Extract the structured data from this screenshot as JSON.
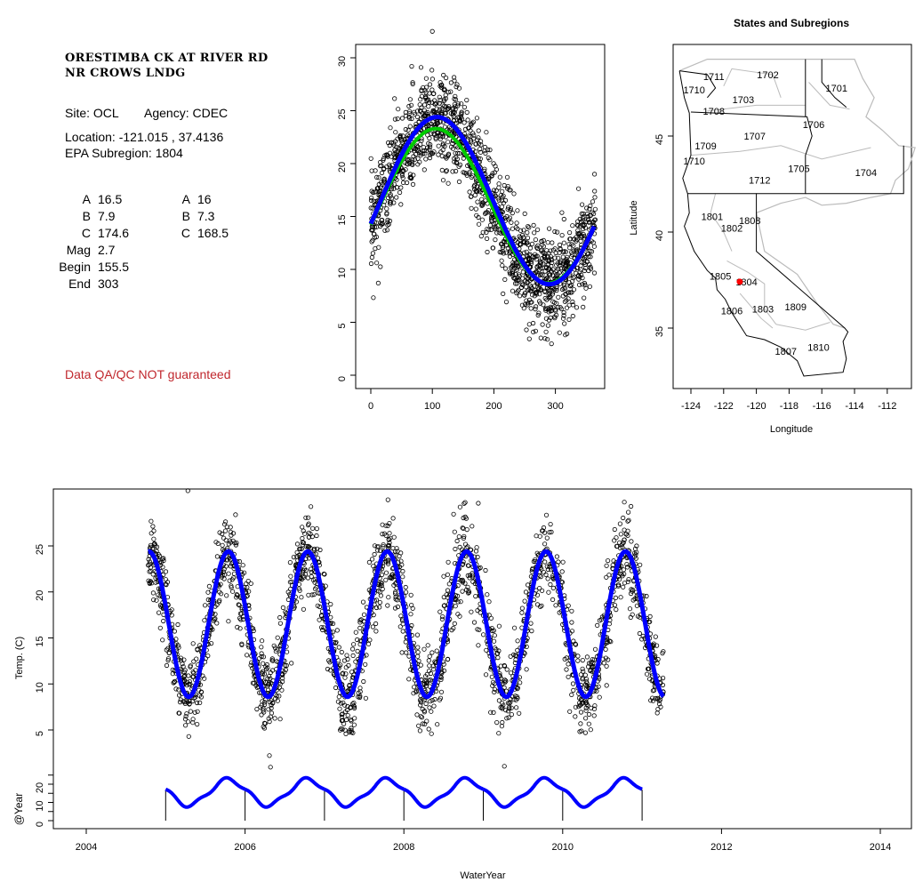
{
  "station": {
    "title_line1": "ORESTIMBA CK AT RIVER RD",
    "title_line2": "NR CROWS LNDG",
    "site": "Site: OCL",
    "agency": "Agency: CDEC",
    "location": "Location: -121.015 , 37.4136",
    "subregion": "EPA Subregion: 1804",
    "params_left": [
      {
        "k": "A",
        "v": "16.5"
      },
      {
        "k": "B",
        "v": "7.9"
      },
      {
        "k": "C",
        "v": "174.6"
      },
      {
        "k": "Mag",
        "v": "2.7"
      },
      {
        "k": "Begin",
        "v": "155.5"
      },
      {
        "k": "End",
        "v": "303"
      }
    ],
    "params_right": [
      {
        "k": "A",
        "v": "16"
      },
      {
        "k": "B",
        "v": "7.3"
      },
      {
        "k": "C",
        "v": "168.5"
      }
    ],
    "qa_note": "Data QA/QC NOT guaranteed"
  },
  "colors": {
    "fit": "#0000ff",
    "fit2": "#00cc00",
    "site": "#ff0000",
    "border": "#000000",
    "subregion": "#bbbbbb",
    "qa": "#c0272d"
  },
  "chart_data": [
    {
      "type": "scatter",
      "title": "",
      "xlabel": "",
      "ylabel": "",
      "xlim": [
        -5,
        370
      ],
      "ylim": [
        -1,
        31.5
      ],
      "xticks": [
        "0",
        "100",
        "200",
        "300"
      ],
      "yticks": [
        "0",
        "5",
        "10",
        "15",
        "20",
        "25",
        "30"
      ],
      "points_model": {
        "mean": 16.3,
        "amplitude": 7.6,
        "peak_day": 288,
        "noise_sd": 2.2,
        "n": 1500,
        "day_range": [
          0,
          365
        ]
      },
      "outlier": {
        "x": 100,
        "y": 32.5
      },
      "fits": [
        {
          "name": "fit-blue",
          "A": 16.5,
          "B": 7.9,
          "C": 174.6,
          "peak_day": 290,
          "color": "#0000ff"
        },
        {
          "name": "fit-green",
          "A": 16,
          "B": 7.3,
          "C": 168.5,
          "peak_day": 288,
          "color": "#00cc00"
        }
      ]
    },
    {
      "type": "map",
      "title": "States and Subregions",
      "xlabel": "Longitude",
      "ylabel": "Latitude",
      "xlim": [
        -125.2,
        -110.6
      ],
      "ylim": [
        31.9,
        49.8
      ],
      "xticks": [
        "-124",
        "-122",
        "-120",
        "-118",
        "-116",
        "-114",
        "-112"
      ],
      "yticks": [
        "35",
        "40",
        "45"
      ],
      "site": {
        "lon": -121.015,
        "lat": 37.4136
      },
      "subregions": [
        {
          "label": "1711",
          "lon": -122.6,
          "lat": 48.1
        },
        {
          "label": "1702",
          "lon": -119.3,
          "lat": 48.2
        },
        {
          "label": "1701",
          "lon": -115.1,
          "lat": 47.5
        },
        {
          "label": "1710",
          "lon": -123.8,
          "lat": 47.4
        },
        {
          "label": "1703",
          "lon": -120.8,
          "lat": 46.9
        },
        {
          "label": "1708",
          "lon": -122.6,
          "lat": 46.3
        },
        {
          "label": "1706",
          "lon": -116.5,
          "lat": 45.6
        },
        {
          "label": "1707",
          "lon": -120.1,
          "lat": 45.0
        },
        {
          "label": "1709",
          "lon": -123.1,
          "lat": 44.5
        },
        {
          "label": "1710",
          "lon": -123.8,
          "lat": 43.7
        },
        {
          "label": "1705",
          "lon": -117.4,
          "lat": 43.3
        },
        {
          "label": "1704",
          "lon": -113.3,
          "lat": 43.1
        },
        {
          "label": "1712",
          "lon": -119.8,
          "lat": 42.7
        },
        {
          "label": "1801",
          "lon": -122.7,
          "lat": 40.8
        },
        {
          "label": "1808",
          "lon": -120.4,
          "lat": 40.6
        },
        {
          "label": "1802",
          "lon": -121.5,
          "lat": 40.2
        },
        {
          "label": "1805",
          "lon": -122.2,
          "lat": 37.7
        },
        {
          "label": "1804",
          "lon": -120.6,
          "lat": 37.4
        },
        {
          "label": "1806",
          "lon": -121.5,
          "lat": 35.9
        },
        {
          "label": "1803",
          "lon": -119.6,
          "lat": 36.0
        },
        {
          "label": "1809",
          "lon": -117.6,
          "lat": 36.1
        },
        {
          "label": "1807",
          "lon": -118.2,
          "lat": 33.8
        },
        {
          "label": "1810",
          "lon": -116.2,
          "lat": 34.0
        }
      ]
    },
    {
      "type": "scatter",
      "xlabel": "WaterYear",
      "ylabel": "Temp. (C)",
      "ylabel2": "@Year",
      "xlim": [
        2003.6,
        2014.4
      ],
      "xticks": [
        "2004",
        "2006",
        "2008",
        "2010",
        "2012",
        "2014"
      ],
      "yticks": [
        "5",
        "10",
        "15",
        "20",
        "25"
      ],
      "yticks2": [
        "0",
        "10",
        "20"
      ],
      "points_model": {
        "x_range": [
          2004.78,
          2011.27
        ],
        "mean": 16.3,
        "amplitude": 7.7,
        "noise_sd": 2.3,
        "n": 2300
      },
      "outlier": {
        "x": 2005.28,
        "y": 31
      },
      "fit": {
        "A": 16.5,
        "B": 7.9,
        "color": "#0000ff"
      },
      "year_markers": [
        2005,
        2006,
        2007,
        2008,
        2009,
        2010,
        2011
      ],
      "year_marker_height": 17
    }
  ]
}
